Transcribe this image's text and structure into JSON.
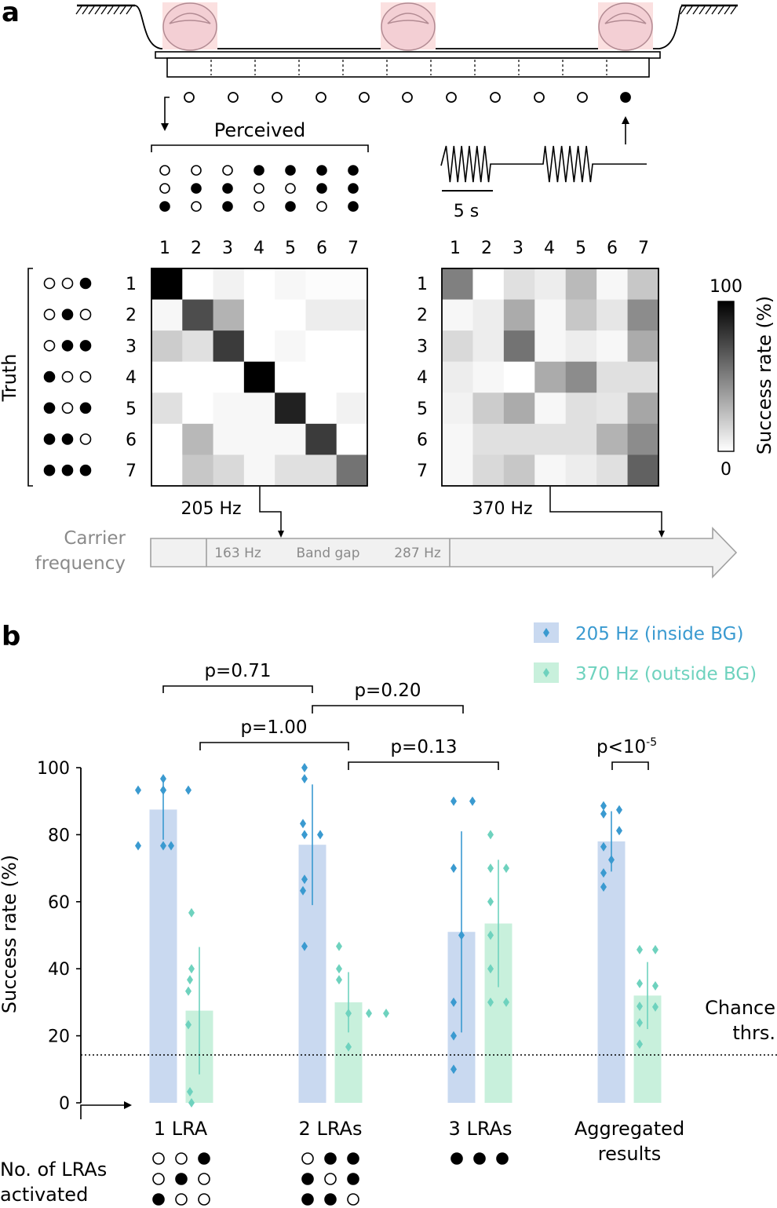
{
  "panel_a": {
    "label": "a",
    "perceived_label": "Perceived",
    "truth_label": "Truth",
    "scale_bar_label": "5 s",
    "col_numbers": [
      "1",
      "2",
      "3",
      "4",
      "5",
      "6",
      "7"
    ],
    "row_numbers": [
      "1",
      "2",
      "3",
      "4",
      "5",
      "6",
      "7"
    ],
    "patterns": [
      [
        0,
        0,
        1
      ],
      [
        0,
        1,
        0
      ],
      [
        0,
        1,
        1
      ],
      [
        1,
        0,
        0
      ],
      [
        1,
        0,
        1
      ],
      [
        1,
        1,
        0
      ],
      [
        1,
        1,
        1
      ]
    ],
    "colorbar": {
      "max_label": "100",
      "min_label": "0",
      "title": "Success rate (%)"
    },
    "carrier_label_line1": "Carrier",
    "carrier_label_line2": "frequency",
    "band_low": "163 Hz",
    "band_gap": "Band gap",
    "band_high": "287 Hz",
    "matrix_left_label": "205 Hz",
    "matrix_right_label": "370 Hz"
  },
  "panel_b": {
    "label": "b",
    "legend": [
      {
        "label": "205 Hz (inside BG)",
        "color": "#3a9ad0"
      },
      {
        "label": "370 Hz (outside BG)",
        "color": "#6ed2be"
      }
    ],
    "brackets": [
      {
        "text": "p=0.71"
      },
      {
        "text": "p=0.20"
      },
      {
        "text": "p=1.00"
      },
      {
        "text": "p=0.13"
      },
      {
        "text": "p<10",
        "sup": "-5"
      }
    ],
    "chance_line1": "Chance",
    "chance_line2": "thrs.",
    "xaxis_caption_line1": "No. of LRAs",
    "xaxis_caption_line2": "activated",
    "aggregated_line2": "results",
    "lra_patterns": [
      [
        [
          0,
          0,
          1
        ],
        [
          0,
          1,
          0
        ],
        [
          1,
          0,
          0
        ]
      ],
      [
        [
          0,
          1,
          1
        ],
        [
          1,
          0,
          1
        ],
        [
          1,
          1,
          0
        ]
      ],
      [
        [
          1,
          1,
          1
        ]
      ],
      []
    ]
  },
  "chart_data": [
    {
      "type": "heatmap",
      "title": "205 Hz",
      "xlabel": "Perceived",
      "ylabel": "Truth",
      "x": [
        "1",
        "2",
        "3",
        "4",
        "5",
        "6",
        "7"
      ],
      "y": [
        "1",
        "2",
        "3",
        "4",
        "5",
        "6",
        "7"
      ],
      "colorbar_label": "Success rate (%)",
      "zlim": [
        0,
        100
      ],
      "values": [
        [
          100,
          0,
          5,
          0,
          3,
          1,
          1
        ],
        [
          3,
          70,
          30,
          0,
          0,
          7,
          7
        ],
        [
          20,
          12,
          77,
          0,
          3,
          0,
          0
        ],
        [
          0,
          0,
          0,
          100,
          0,
          0,
          0
        ],
        [
          12,
          0,
          3,
          3,
          87,
          0,
          5
        ],
        [
          0,
          28,
          3,
          3,
          3,
          77,
          0
        ],
        [
          0,
          22,
          15,
          3,
          12,
          12,
          55
        ]
      ]
    },
    {
      "type": "heatmap",
      "title": "370 Hz",
      "xlabel": "Perceived",
      "ylabel": "Truth",
      "x": [
        "1",
        "2",
        "3",
        "4",
        "5",
        "6",
        "7"
      ],
      "y": [
        "1",
        "2",
        "3",
        "4",
        "5",
        "6",
        "7"
      ],
      "colorbar_label": "Success rate (%)",
      "zlim": [
        0,
        100
      ],
      "values": [
        [
          50,
          0,
          12,
          7,
          27,
          3,
          22
        ],
        [
          3,
          7,
          33,
          3,
          22,
          10,
          45
        ],
        [
          15,
          7,
          55,
          3,
          7,
          3,
          33
        ],
        [
          7,
          3,
          0,
          33,
          45,
          12,
          12
        ],
        [
          5,
          20,
          33,
          3,
          12,
          10,
          35
        ],
        [
          3,
          12,
          12,
          12,
          12,
          30,
          45
        ],
        [
          3,
          15,
          22,
          3,
          7,
          12,
          62
        ]
      ]
    },
    {
      "type": "bar",
      "categories": [
        "1 LRA",
        "2 LRAs",
        "3 LRAs",
        "Aggregated"
      ],
      "ylabel": "Success rate (%)",
      "ylim": [
        0,
        100
      ],
      "yticks": [
        0,
        20,
        40,
        60,
        80,
        100
      ],
      "chance_threshold": 14.3,
      "series": [
        {
          "name": "205 Hz (inside BG)",
          "values": [
            87.5,
            77,
            51,
            78
          ],
          "sd": [
            9,
            18,
            30,
            9
          ],
          "points": [
            [
              93.3,
              93.3,
              93.3,
              76.7,
              76.7,
              96.7,
              93.3,
              76.7
            ],
            [
              100,
              96.7,
              83.3,
              80,
              80,
              66.7,
              63.3,
              46.7
            ],
            [
              90,
              90,
              70,
              50,
              30,
              20,
              10
            ],
            [
              88.6,
              87.4,
              86.2,
              81.2,
              76.4,
              72.5,
              68.6,
              64.4
            ]
          ]
        },
        {
          "name": "370 Hz (outside BG)",
          "values": [
            27.5,
            30,
            53.5,
            32
          ],
          "sd": [
            19,
            9,
            19,
            10
          ],
          "points": [
            [
              56.7,
              40,
              36.7,
              33.3,
              23.3,
              3.3,
              0
            ],
            [
              46.7,
              40,
              36.7,
              26.7,
              26.7,
              26.7,
              16.7
            ],
            [
              80,
              70,
              70,
              60,
              50,
              40,
              30,
              30
            ],
            [
              45.7,
              45.7,
              35.6,
              34.9,
              28.8,
              28.6,
              23.9,
              17.5
            ]
          ]
        }
      ]
    }
  ]
}
